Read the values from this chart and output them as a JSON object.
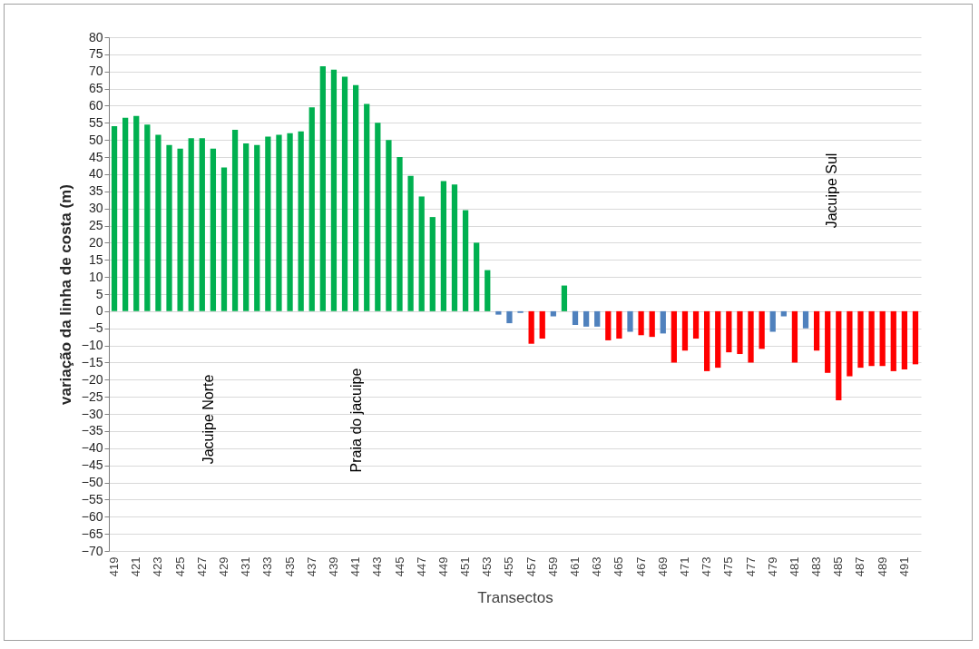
{
  "chart_data": {
    "type": "bar",
    "xlabel": "Transectos",
    "ylabel": "variação da linha de costa (m)",
    "categories": [
      "419",
      null,
      "421",
      null,
      "423",
      null,
      "425",
      null,
      "427",
      null,
      "429",
      null,
      "431",
      null,
      "433",
      null,
      "435",
      null,
      "437",
      null,
      "439",
      null,
      "441",
      null,
      "443",
      null,
      "445",
      null,
      "447",
      null,
      "449",
      null,
      "451",
      null,
      "453",
      null,
      "455",
      null,
      "457",
      null,
      "459",
      null,
      "461",
      null,
      "463",
      null,
      "465",
      null,
      "467",
      null,
      "469",
      null,
      "471",
      null,
      "473",
      null,
      "475",
      null,
      "477",
      null,
      "479",
      null,
      "481",
      null,
      "483",
      null,
      "485",
      null,
      "487",
      null,
      "489",
      null,
      "491",
      null
    ],
    "values": [
      54,
      56.5,
      57,
      54.5,
      51.5,
      48.5,
      47.5,
      50.5,
      50.5,
      47.5,
      42,
      53,
      49,
      48.5,
      51,
      51.5,
      52,
      52.5,
      59.5,
      71.5,
      70.5,
      68.5,
      66,
      60.5,
      55,
      50,
      45,
      39.5,
      33.5,
      27.5,
      38,
      37,
      29.5,
      20,
      12,
      -1,
      -3.5,
      -0.5,
      -9.5,
      -8,
      -1.5,
      7.5,
      -4,
      -4.5,
      -4.5,
      -8.5,
      -8,
      -6,
      -7,
      -7.5,
      -6.5,
      -15,
      -11.5,
      -8,
      -17.5,
      -16.5,
      -12,
      -12.5,
      -15,
      -11,
      -6,
      -1.5,
      -15,
      -5,
      -11.5,
      -18,
      -26,
      -19,
      -16.5,
      -16,
      -16,
      -17.5,
      -17,
      -15.5
    ],
    "colors": [
      "#00b050",
      "#00b050",
      "#00b050",
      "#00b050",
      "#00b050",
      "#00b050",
      "#00b050",
      "#00b050",
      "#00b050",
      "#00b050",
      "#00b050",
      "#00b050",
      "#00b050",
      "#00b050",
      "#00b050",
      "#00b050",
      "#00b050",
      "#00b050",
      "#00b050",
      "#00b050",
      "#00b050",
      "#00b050",
      "#00b050",
      "#00b050",
      "#00b050",
      "#00b050",
      "#00b050",
      "#00b050",
      "#00b050",
      "#00b050",
      "#00b050",
      "#00b050",
      "#00b050",
      "#00b050",
      "#00b050",
      "#4f81bd",
      "#4f81bd",
      "#4f81bd",
      "#ff0000",
      "#ff0000",
      "#4f81bd",
      "#00b050",
      "#4f81bd",
      "#4f81bd",
      "#4f81bd",
      "#ff0000",
      "#ff0000",
      "#4f81bd",
      "#ff0000",
      "#ff0000",
      "#4f81bd",
      "#ff0000",
      "#ff0000",
      "#ff0000",
      "#ff0000",
      "#ff0000",
      "#ff0000",
      "#ff0000",
      "#ff0000",
      "#ff0000",
      "#4f81bd",
      "#4f81bd",
      "#ff0000",
      "#4f81bd",
      "#ff0000",
      "#ff0000",
      "#ff0000",
      "#ff0000",
      "#ff0000",
      "#ff0000",
      "#ff0000",
      "#ff0000",
      "#ff0000",
      "#ff0000"
    ],
    "ylim": [
      -70,
      80
    ],
    "yticks": [
      -70,
      -65,
      -60,
      -55,
      -50,
      -45,
      -40,
      -35,
      -30,
      -25,
      -20,
      -15,
      -10,
      -5,
      0,
      5,
      10,
      15,
      20,
      25,
      30,
      35,
      40,
      45,
      50,
      55,
      60,
      65,
      70,
      75,
      80
    ],
    "grid": "y",
    "annotations": [
      "Jacuipe Norte",
      "Praia do jacuipe",
      "Jacuipe Sul"
    ]
  }
}
